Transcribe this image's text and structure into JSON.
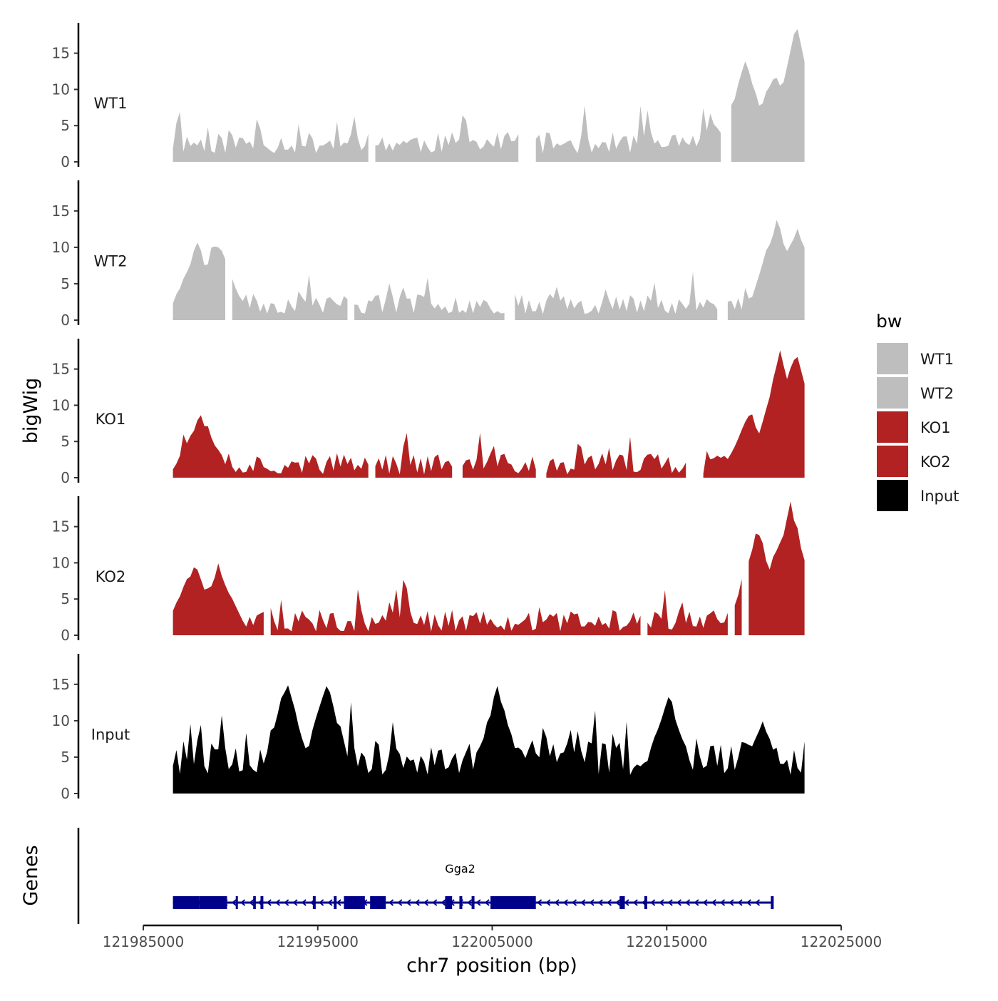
{
  "chart_data": {
    "type": "area",
    "chromosome": "chr7",
    "xlabel": "chr7 position (bp)",
    "ylabel": "bigWig",
    "genes_label": "Genes",
    "xlim": [
      121985000,
      122025000
    ],
    "x_ticks": [
      121985000,
      121995000,
      122005000,
      122015000,
      122025000
    ],
    "x_tick_labels": [
      "121985000",
      "121995000",
      "122005000",
      "122015000",
      "122025000"
    ],
    "ylim": [
      0,
      19
    ],
    "y_ticks": [
      0,
      5,
      10,
      15
    ],
    "y_tick_labels": [
      "0",
      "5",
      "10",
      "15"
    ],
    "legend": {
      "title": "bw",
      "entries": [
        {
          "label": "WT1",
          "color": "#BEBEBE"
        },
        {
          "label": "WT2",
          "color": "#BEBEBE"
        },
        {
          "label": "KO1",
          "color": "#B22222"
        },
        {
          "label": "KO2",
          "color": "#B22222"
        },
        {
          "label": "Input",
          "color": "#000000"
        }
      ]
    },
    "track_start": 121986700,
    "track_end": 122023000,
    "bin_size": 200,
    "tracks": [
      {
        "name": "WT1",
        "color": "#BEBEBE",
        "base": 2.6,
        "noise": 1.5,
        "spike_prob": 0.12,
        "spike_height": 4.5,
        "seed": 11,
        "gaps": [
          [
            121998000,
            121998200
          ],
          [
            122006700,
            122007400
          ],
          [
            122018200,
            122018500
          ]
        ],
        "peaks": [
          {
            "center": 122017700,
            "value": 4.5
          },
          {
            "center": 122019500,
            "value": 13
          },
          {
            "center": 122021200,
            "value": 12
          },
          {
            "center": 122022400,
            "value": 18
          },
          {
            "center": 122023000,
            "value": 10
          }
        ]
      },
      {
        "name": "WT2",
        "color": "#BEBEBE",
        "base": 2.2,
        "noise": 1.4,
        "spike_prob": 0.12,
        "spike_height": 4.0,
        "seed": 23,
        "gaps": [
          [
            121989900,
            121990000
          ],
          [
            121996800,
            121997000
          ],
          [
            122005900,
            122006100
          ],
          [
            122018000,
            122018400
          ]
        ],
        "peaks": [
          {
            "center": 121988100,
            "value": 9.5
          },
          {
            "center": 121989200,
            "value": 10.5
          },
          {
            "center": 122021300,
            "value": 13
          },
          {
            "center": 122022500,
            "value": 12
          },
          {
            "center": 122023000,
            "value": 10
          }
        ]
      },
      {
        "name": "KO1",
        "color": "#B22222",
        "base": 1.9,
        "noise": 1.5,
        "spike_prob": 0.11,
        "spike_height": 5.0,
        "seed": 37,
        "gaps": [
          [
            121998100,
            121998200
          ],
          [
            122002800,
            122003200
          ],
          [
            122007700,
            122008000
          ],
          [
            122016300,
            122017000
          ]
        ],
        "peaks": [
          {
            "center": 121988300,
            "value": 8
          },
          {
            "center": 122019800,
            "value": 8
          },
          {
            "center": 122021500,
            "value": 16.5
          },
          {
            "center": 122022400,
            "value": 17
          },
          {
            "center": 122022900,
            "value": 9
          }
        ]
      },
      {
        "name": "KO2",
        "color": "#B22222",
        "base": 2.0,
        "noise": 1.5,
        "spike_prob": 0.11,
        "spike_height": 5.0,
        "seed": 51,
        "gaps": [
          [
            121992000,
            121992200
          ],
          [
            122013600,
            122013800
          ],
          [
            122018600,
            122018800
          ],
          [
            122019400,
            122019500
          ]
        ],
        "peaks": [
          {
            "center": 121987900,
            "value": 9
          },
          {
            "center": 121989300,
            "value": 8.5
          },
          {
            "center": 122020200,
            "value": 14
          },
          {
            "center": 122021500,
            "value": 12.5
          },
          {
            "center": 122022100,
            "value": 17.5
          },
          {
            "center": 122022700,
            "value": 8
          }
        ]
      },
      {
        "name": "Input",
        "color": "#000000",
        "base": 5.0,
        "noise": 2.5,
        "spike_prob": 0.14,
        "spike_height": 6.0,
        "seed": 67,
        "gaps": [],
        "peaks": [
          {
            "center": 121993200,
            "value": 14.5
          },
          {
            "center": 121995500,
            "value": 14.5
          },
          {
            "center": 122005300,
            "value": 13.5
          },
          {
            "center": 122015100,
            "value": 13
          },
          {
            "center": 122020500,
            "value": 9
          }
        ]
      }
    ],
    "gene": {
      "name": "Gga2",
      "start": 121986700,
      "end": 122021100,
      "strand": "-",
      "color": "#00008B",
      "exons": [
        [
          121986700,
          121988200
        ],
        [
          121988200,
          121989800
        ],
        [
          121990300,
          121990400
        ],
        [
          121991300,
          121991450
        ],
        [
          121996500,
          121997700
        ],
        [
          121998000,
          121998900
        ],
        [
          122002300,
          122002700
        ],
        [
          122004900,
          122007500
        ],
        [
          122012300,
          122012600
        ]
      ],
      "small_exons": [
        121991800,
        121994800,
        121996000,
        122003200,
        122003900,
        122013800,
        122021050
      ]
    }
  }
}
